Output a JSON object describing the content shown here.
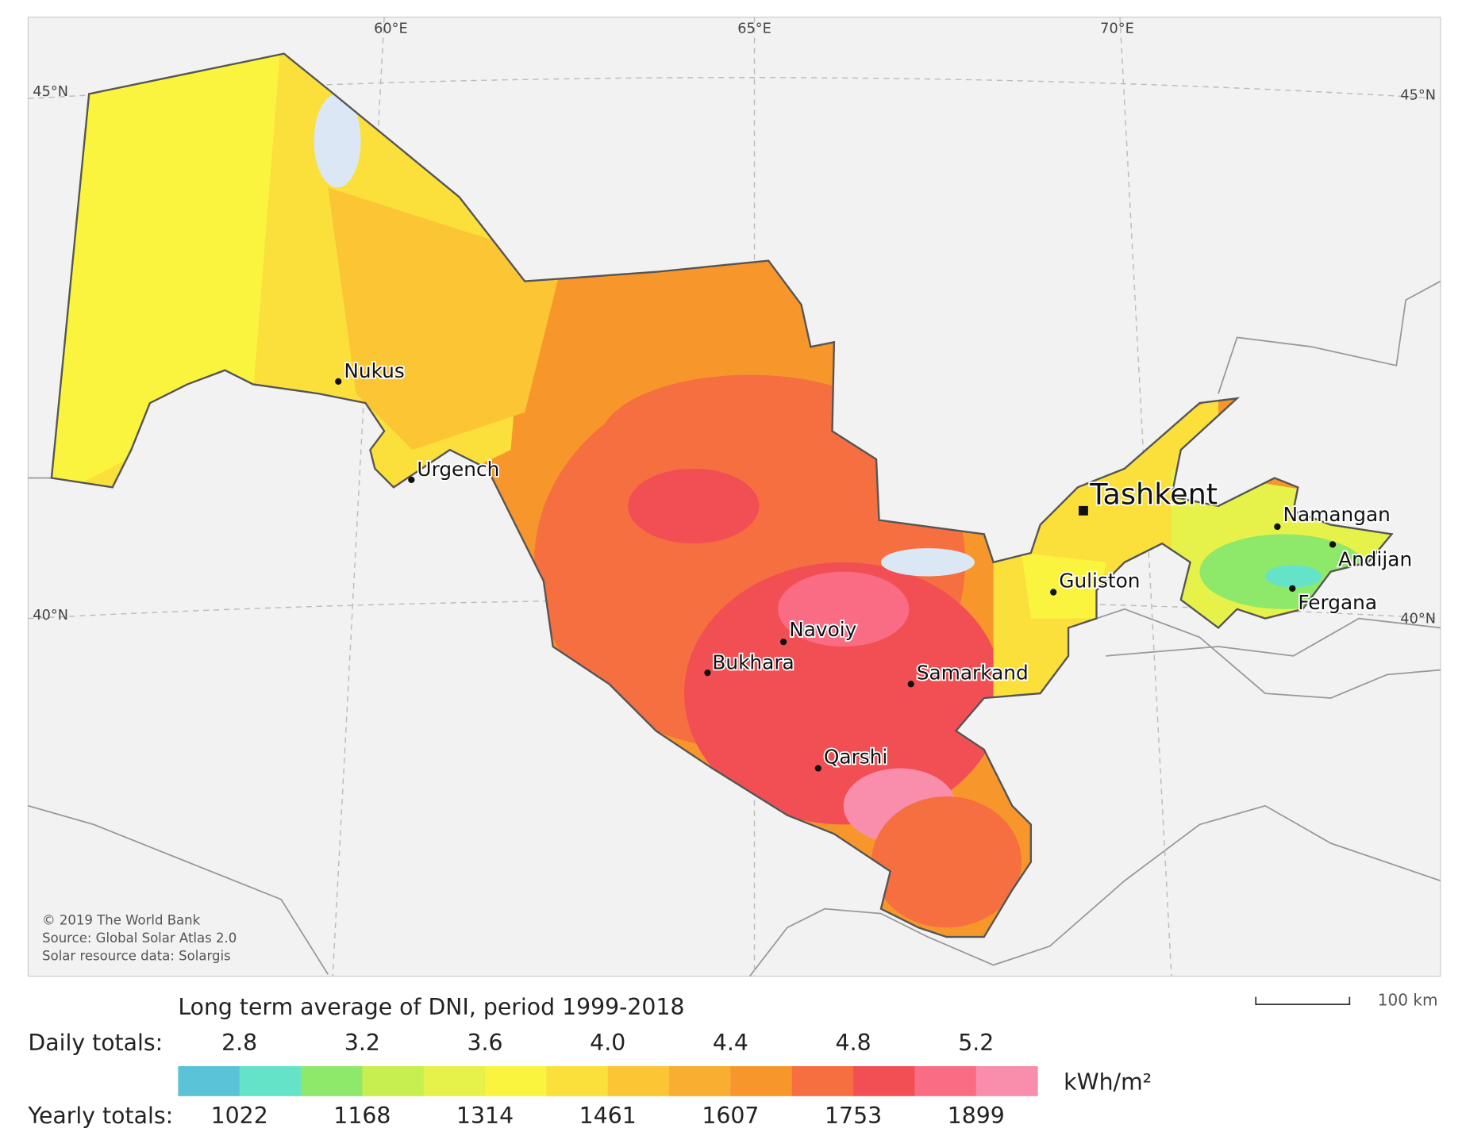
{
  "map": {
    "graticule": {
      "lon": [
        "60°E",
        "65°E",
        "70°E"
      ],
      "lat_left": [
        "45°N",
        "40°N"
      ],
      "lat_right": [
        "45°N",
        "40°N"
      ]
    },
    "cities": [
      "Nukus",
      "Urgench",
      "Navoiy",
      "Bukhara",
      "Samarkand",
      "Qarshi",
      "Guliston",
      "Namangan",
      "Andijan",
      "Fergana"
    ],
    "capital": "Tashkent",
    "attribution": [
      "© 2019 The World Bank",
      "Source: Global Solar Atlas 2.0",
      "Solar resource data: Solargis"
    ],
    "scale_bar": "100 km"
  },
  "legend": {
    "title": "Long term average of DNI, period 1999-2018",
    "daily_label": "Daily totals:",
    "daily": [
      "2.8",
      "3.2",
      "3.6",
      "4.0",
      "4.4",
      "4.8",
      "5.2"
    ],
    "yearly_label": "Yearly totals:",
    "yearly": [
      "1022",
      "1168",
      "1314",
      "1461",
      "1607",
      "1753",
      "1899"
    ],
    "unit": "kWh/m²",
    "colors": [
      "#5bc3d8",
      "#64e3c9",
      "#8ee86a",
      "#c6ef4f",
      "#e6f24a",
      "#fbf43f",
      "#fbdf3b",
      "#fbc534",
      "#f9ae31",
      "#f7962b",
      "#f56f40",
      "#f24f55",
      "#f96c84",
      "#f88eab"
    ]
  }
}
